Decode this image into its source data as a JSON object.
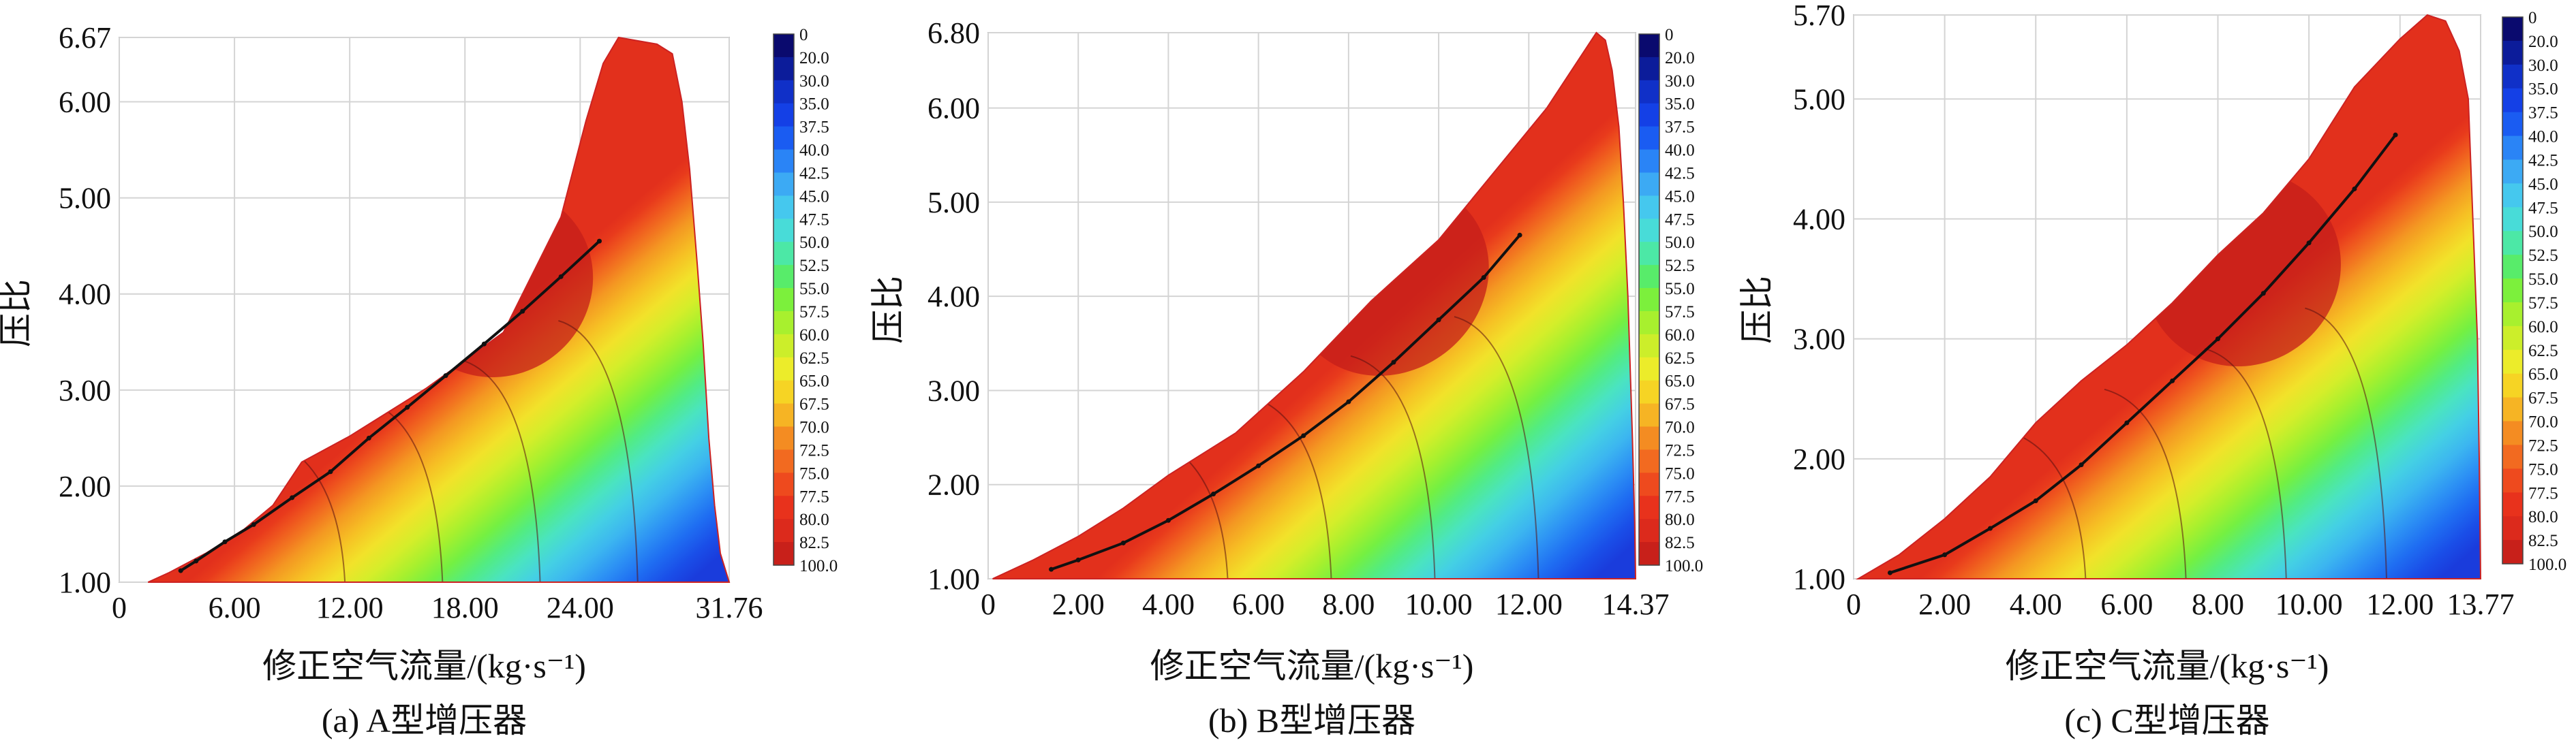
{
  "chart_data": [
    {
      "type": "heatmap",
      "title": "",
      "caption": "(a) A型增压器",
      "xlabel": "修正空气流量/(kg·s⁻¹)",
      "ylabel": "压比",
      "xlim": [
        0,
        31.76
      ],
      "ylim": [
        1.0,
        6.67
      ],
      "xticks": [
        "0",
        "6.00",
        "12.00",
        "18.00",
        "24.00",
        "31.76"
      ],
      "xtick_values": [
        0,
        6,
        12,
        18,
        24,
        31.76
      ],
      "yticks": [
        "1.00",
        "2.00",
        "3.00",
        "4.00",
        "5.00",
        "6.00",
        "6.67"
      ],
      "ytick_values": [
        1,
        2,
        3,
        4,
        5,
        6,
        6.67
      ],
      "envelope": [
        [
          1.5,
          1.0
        ],
        [
          2.6,
          1.1
        ],
        [
          4.5,
          1.3
        ],
        [
          6.5,
          1.55
        ],
        [
          8,
          1.8
        ],
        [
          9.5,
          2.25
        ],
        [
          12,
          2.52
        ],
        [
          16,
          3.02
        ],
        [
          20,
          3.6
        ],
        [
          23,
          4.8
        ],
        [
          24.3,
          5.8
        ],
        [
          25.2,
          6.4
        ],
        [
          26,
          6.67
        ],
        [
          28,
          6.6
        ],
        [
          28.8,
          6.5
        ],
        [
          29.3,
          6.0
        ],
        [
          29.7,
          5.3
        ],
        [
          30.1,
          4.3
        ],
        [
          30.4,
          3.5
        ],
        [
          30.7,
          2.5
        ],
        [
          31.0,
          1.8
        ],
        [
          31.3,
          1.3
        ],
        [
          31.76,
          1.0
        ]
      ],
      "operating_line": [
        [
          3.2,
          1.12
        ],
        [
          4,
          1.22
        ],
        [
          5.5,
          1.42
        ],
        [
          7,
          1.6
        ],
        [
          9,
          1.88
        ],
        [
          11,
          2.15
        ],
        [
          13,
          2.5
        ],
        [
          15,
          2.82
        ],
        [
          17,
          3.15
        ],
        [
          19,
          3.48
        ],
        [
          21,
          3.82
        ],
        [
          23,
          4.18
        ],
        [
          25,
          4.55
        ]
      ],
      "colorbar": {
        "labels": [
          "0",
          "20.0",
          "30.0",
          "35.0",
          "37.5",
          "40.0",
          "42.5",
          "45.0",
          "47.5",
          "50.0",
          "52.5",
          "55.0",
          "57.5",
          "60.0",
          "62.5",
          "65.0",
          "67.5",
          "70.0",
          "72.5",
          "75.0",
          "77.5",
          "80.0",
          "82.5",
          "100.0"
        ],
        "colors": [
          "#0a0a6e",
          "#0c1c9a",
          "#1030c8",
          "#1440e6",
          "#1a5cf2",
          "#2a84f6",
          "#3caaf4",
          "#45c8ee",
          "#48dcd8",
          "#4ce8a6",
          "#58ec6a",
          "#7cf03c",
          "#a8f02e",
          "#ccee2a",
          "#ecec2a",
          "#f6d424",
          "#f6b424",
          "#f48c22",
          "#f26a20",
          "#ee4a1e",
          "#e8321c",
          "#dc2a1c",
          "#c8201a",
          "#b01818"
        ]
      }
    },
    {
      "type": "heatmap",
      "title": "",
      "caption": "(b) B型增压器",
      "xlabel": "修正空气流量/(kg·s⁻¹)",
      "ylabel": "压比",
      "xlim": [
        0,
        14.37
      ],
      "ylim": [
        1.0,
        6.8
      ],
      "xticks": [
        "0",
        "2.00",
        "4.00",
        "6.00",
        "8.00",
        "10.00",
        "12.00",
        "14.37"
      ],
      "xtick_values": [
        0,
        2,
        4,
        6,
        8,
        10,
        12,
        14.37
      ],
      "yticks": [
        "1.00",
        "2.00",
        "3.00",
        "4.00",
        "5.00",
        "6.00",
        "6.80"
      ],
      "ytick_values": [
        1,
        2,
        3,
        4,
        5,
        6,
        6.8
      ],
      "envelope": [
        [
          0.1,
          1.0
        ],
        [
          1.0,
          1.2
        ],
        [
          2,
          1.45
        ],
        [
          3,
          1.75
        ],
        [
          4,
          2.1
        ],
        [
          5.5,
          2.55
        ],
        [
          7,
          3.2
        ],
        [
          8.5,
          3.95
        ],
        [
          10,
          4.6
        ],
        [
          11.2,
          5.3
        ],
        [
          12.4,
          6.0
        ],
        [
          13.5,
          6.8
        ],
        [
          13.7,
          6.72
        ],
        [
          13.85,
          6.4
        ],
        [
          14.0,
          5.8
        ],
        [
          14.1,
          5.0
        ],
        [
          14.2,
          4.0
        ],
        [
          14.3,
          2.5
        ],
        [
          14.35,
          1.6
        ],
        [
          14.37,
          1.0
        ]
      ],
      "operating_line": [
        [
          1.4,
          1.1
        ],
        [
          2,
          1.2
        ],
        [
          3,
          1.38
        ],
        [
          4,
          1.62
        ],
        [
          5,
          1.9
        ],
        [
          6,
          2.2
        ],
        [
          7,
          2.52
        ],
        [
          8,
          2.88
        ],
        [
          9,
          3.3
        ],
        [
          10,
          3.75
        ],
        [
          11,
          4.2
        ],
        [
          11.8,
          4.65
        ]
      ],
      "colorbar": {
        "labels": [
          "0",
          "20.0",
          "30.0",
          "35.0",
          "37.5",
          "40.0",
          "42.5",
          "45.0",
          "47.5",
          "50.0",
          "52.5",
          "55.0",
          "57.5",
          "60.0",
          "62.5",
          "65.0",
          "67.5",
          "70.0",
          "72.5",
          "75.0",
          "77.5",
          "80.0",
          "82.5",
          "100.0"
        ],
        "colors": [
          "#0a0a6e",
          "#0c1c9a",
          "#1030c8",
          "#1440e6",
          "#1a5cf2",
          "#2a84f6",
          "#3caaf4",
          "#45c8ee",
          "#48dcd8",
          "#4ce8a6",
          "#58ec6a",
          "#7cf03c",
          "#a8f02e",
          "#ccee2a",
          "#ecec2a",
          "#f6d424",
          "#f6b424",
          "#f48c22",
          "#f26a20",
          "#ee4a1e",
          "#e8321c",
          "#dc2a1c",
          "#c8201a",
          "#b01818"
        ]
      }
    },
    {
      "type": "heatmap",
      "title": "",
      "caption": "(c) C型增压器",
      "xlabel": "修正空气流量/(kg·s⁻¹)",
      "ylabel": "压比",
      "xlim": [
        0,
        13.77
      ],
      "ylim": [
        1.0,
        5.7
      ],
      "xticks": [
        "0",
        "2.00",
        "4.00",
        "6.00",
        "8.00",
        "10.00",
        "12.00",
        "13.77"
      ],
      "xtick_values": [
        0,
        2,
        4,
        6,
        8,
        10,
        12,
        13.77
      ],
      "yticks": [
        "1.00",
        "2.00",
        "3.00",
        "4.00",
        "5.00",
        "5.70"
      ],
      "ytick_values": [
        1,
        2,
        3,
        4,
        5,
        5.7
      ],
      "envelope": [
        [
          0.1,
          1.0
        ],
        [
          1.0,
          1.2
        ],
        [
          2,
          1.5
        ],
        [
          3,
          1.85
        ],
        [
          4,
          2.3
        ],
        [
          5,
          2.65
        ],
        [
          6,
          2.95
        ],
        [
          7,
          3.3
        ],
        [
          8,
          3.7
        ],
        [
          9,
          4.05
        ],
        [
          10,
          4.5
        ],
        [
          11,
          5.1
        ],
        [
          12,
          5.5
        ],
        [
          12.6,
          5.7
        ],
        [
          13.0,
          5.65
        ],
        [
          13.3,
          5.4
        ],
        [
          13.5,
          5.0
        ],
        [
          13.6,
          4.0
        ],
        [
          13.7,
          3.0
        ],
        [
          13.74,
          2.0
        ],
        [
          13.77,
          1.0
        ]
      ],
      "operating_line": [
        [
          0.8,
          1.05
        ],
        [
          2,
          1.2
        ],
        [
          3,
          1.42
        ],
        [
          4,
          1.65
        ],
        [
          5,
          1.95
        ],
        [
          6,
          2.3
        ],
        [
          7,
          2.65
        ],
        [
          8,
          3.0
        ],
        [
          9,
          3.38
        ],
        [
          10,
          3.8
        ],
        [
          11,
          4.25
        ],
        [
          11.9,
          4.7
        ]
      ],
      "colorbar": {
        "labels": [
          "0",
          "20.0",
          "30.0",
          "35.0",
          "37.5",
          "40.0",
          "42.5",
          "45.0",
          "47.5",
          "50.0",
          "52.5",
          "55.0",
          "57.5",
          "60.0",
          "62.5",
          "65.0",
          "67.5",
          "70.0",
          "72.5",
          "75.0",
          "77.5",
          "80.0",
          "82.5",
          "100.0"
        ],
        "colors": [
          "#0a0a6e",
          "#0c1c9a",
          "#1030c8",
          "#1440e6",
          "#1a5cf2",
          "#2a84f6",
          "#3caaf4",
          "#45c8ee",
          "#48dcd8",
          "#4ce8a6",
          "#58ec6a",
          "#7cf03c",
          "#a8f02e",
          "#ccee2a",
          "#ecec2a",
          "#f6d424",
          "#f6b424",
          "#f48c22",
          "#f26a20",
          "#ee4a1e",
          "#e8321c",
          "#dc2a1c",
          "#c8201a",
          "#b01818"
        ]
      }
    }
  ]
}
